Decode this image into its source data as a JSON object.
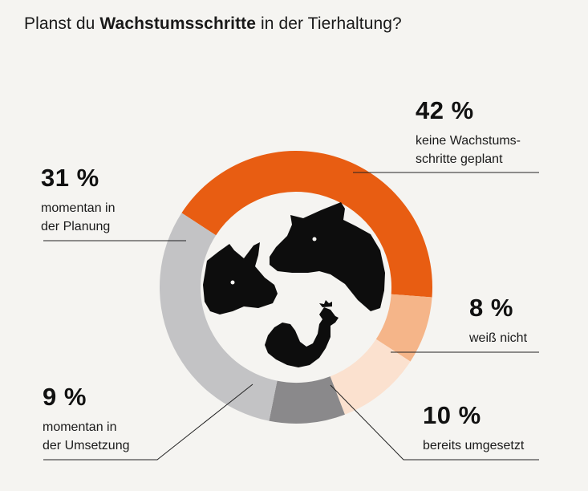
{
  "title": {
    "prefix": "Planst du ",
    "bold": "Wachstumsschritte",
    "suffix": " in der Tierhaltung?"
  },
  "colors": {
    "background": "#f5f4f1",
    "keine": "#e85d12",
    "weiss_nicht": "#f5b589",
    "bereits": "#fbe1cf",
    "umsetzung": "#8a898b",
    "planung": "#c3c3c5",
    "icons": "#0d0d0d"
  },
  "icons": [
    "cow-icon",
    "pig-icon",
    "chicken-icon"
  ],
  "chart_data": {
    "type": "pie",
    "variant": "donut",
    "title": "Planst du Wachstumsschritte in der Tierhaltung?",
    "unit": "%",
    "slices": [
      {
        "key": "keine",
        "value": 42,
        "pct_label": "42 %",
        "label": "keine Wachstums-\nschritte geplant",
        "color": "#e85d12"
      },
      {
        "key": "weiss_nicht",
        "value": 8,
        "pct_label": "8 %",
        "label": "weiß nicht",
        "color": "#f5b589"
      },
      {
        "key": "bereits",
        "value": 10,
        "pct_label": "10 %",
        "label": "bereits umgesetzt",
        "color": "#fbe1cf"
      },
      {
        "key": "umsetzung",
        "value": 9,
        "pct_label": "9 %",
        "label": "momentan in\nder Umsetzung",
        "color": "#8a898b"
      },
      {
        "key": "planung",
        "value": 31,
        "pct_label": "31 %",
        "label": "momentan in\nder Planung",
        "color": "#c3c3c5"
      }
    ]
  }
}
